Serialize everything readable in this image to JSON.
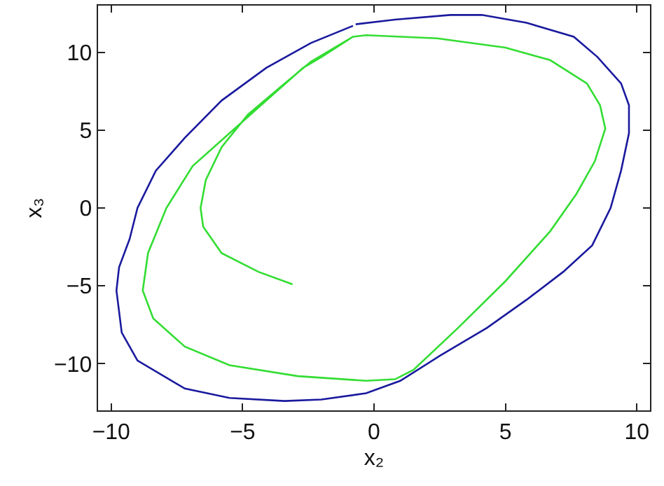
{
  "chart_data": {
    "type": "line",
    "xlabel": "x₂",
    "ylabel": "x₃",
    "xlim": [
      -10.5,
      10.5
    ],
    "ylim": [
      -13,
      13
    ],
    "xticks": [
      {
        "value": -10,
        "label": "−10"
      },
      {
        "value": -5,
        "label": "−5"
      },
      0,
      5,
      10
    ],
    "yticks": [
      {
        "value": -10,
        "label": "−10"
      },
      {
        "value": -5,
        "label": "−5"
      },
      0,
      5,
      10
    ],
    "grid": false,
    "marker": "none",
    "line_style": "solid",
    "series": [
      {
        "color": "#1a1a9e",
        "x": [
          -0.7,
          0.8,
          2.9,
          4.1,
          5.8,
          7.6,
          8.5,
          9.4,
          9.7,
          9.7,
          9.4,
          9.0,
          8.3,
          7.2,
          5.8,
          4.3,
          2.5,
          1.0,
          -0.3,
          -2.0,
          -3.4,
          -5.5,
          -7.2,
          -9.0,
          -9.6,
          -9.8,
          -9.7,
          -9.3,
          -9.0,
          -8.3,
          -7.2,
          -5.8,
          -4.1,
          -2.4,
          -0.8
        ],
        "values": [
          11.8,
          12.1,
          12.4,
          12.4,
          11.9,
          11.0,
          9.7,
          8.0,
          6.6,
          4.8,
          2.4,
          0,
          -2.4,
          -4.1,
          -5.9,
          -7.7,
          -9.5,
          -11.1,
          -11.9,
          -12.3,
          -12.4,
          -12.2,
          -11.6,
          -9.8,
          -8.0,
          -5.3,
          -3.8,
          -2.0,
          0,
          2.4,
          4.5,
          6.9,
          9.0,
          10.6,
          11.7
        ]
      },
      {
        "color": "#33dd33",
        "x": [
          -3.1,
          -4.4,
          -5.8,
          -6.5,
          -6.6,
          -6.4,
          -5.8,
          -4.8,
          -3.4,
          -2.4,
          -0.8,
          -0.3,
          2.4,
          5.0,
          6.7,
          8.1,
          8.6,
          8.8,
          8.4,
          7.7,
          6.7,
          5.0,
          3.2,
          1.5,
          0.8,
          -0.3,
          -2.9,
          -5.5,
          -7.2,
          -8.4,
          -8.8,
          -8.6,
          -7.9,
          -6.9,
          -5.5,
          -4.1,
          -2.7,
          -2.0,
          -0.8
        ],
        "values": [
          -4.9,
          -4.1,
          -2.9,
          -1.2,
          0,
          1.8,
          3.9,
          6.0,
          8.0,
          9.4,
          11.0,
          11.1,
          10.9,
          10.3,
          9.5,
          8.0,
          6.6,
          5.1,
          3.0,
          0.9,
          -1.5,
          -4.7,
          -7.7,
          -10.4,
          -11.0,
          -11.1,
          -10.8,
          -10.1,
          -8.9,
          -7.1,
          -5.3,
          -2.9,
          0,
          2.7,
          4.8,
          6.9,
          9.0,
          9.7,
          11.0
        ]
      }
    ]
  }
}
